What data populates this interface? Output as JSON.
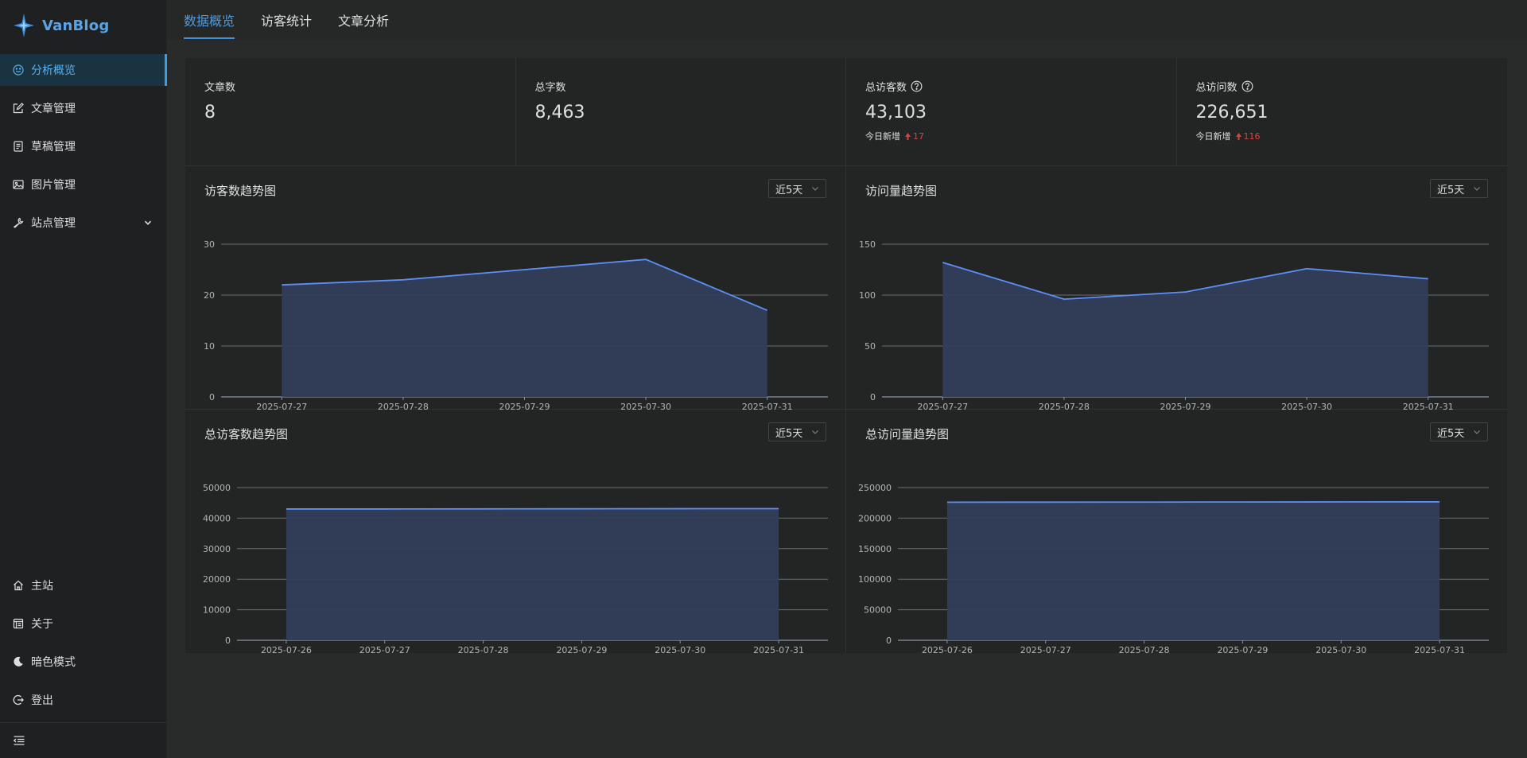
{
  "app": {
    "name": "VanBlog"
  },
  "sidebar": {
    "items": [
      {
        "label": "分析概览",
        "icon": "dashboard-icon",
        "active": true
      },
      {
        "label": "文章管理",
        "icon": "edit-icon"
      },
      {
        "label": "草稿管理",
        "icon": "draft-icon"
      },
      {
        "label": "图片管理",
        "icon": "image-icon"
      },
      {
        "label": "站点管理",
        "icon": "tool-icon",
        "expandable": true
      }
    ],
    "bottom_items": [
      {
        "label": "主站",
        "icon": "home-icon"
      },
      {
        "label": "关于",
        "icon": "about-icon"
      },
      {
        "label": "暗色模式",
        "icon": "moon-icon"
      },
      {
        "label": "登出",
        "icon": "logout-icon"
      }
    ]
  },
  "tabs": [
    {
      "label": "数据概览",
      "active": true
    },
    {
      "label": "访客统计"
    },
    {
      "label": "文章分析"
    }
  ],
  "stats": [
    {
      "title": "文章数",
      "value": "8"
    },
    {
      "title": "总字数",
      "value": "8,463"
    },
    {
      "title": "总访客数",
      "value": "43,103",
      "today_label": "今日新增",
      "today_value": "17",
      "help": true
    },
    {
      "title": "总访问数",
      "value": "226,651",
      "today_label": "今日新增",
      "today_value": "116",
      "help": true
    }
  ],
  "colors": {
    "accent": "#3f9be0",
    "line": "#5b8ff9",
    "area": "#333e5a",
    "up": "#d8423d"
  },
  "chart_data": [
    {
      "type": "area",
      "title": "访客数趋势图",
      "range": "近5天",
      "x": [
        "2025-07-27",
        "2025-07-28",
        "2025-07-29",
        "2025-07-30",
        "2025-07-31"
      ],
      "values": [
        22,
        23,
        25,
        27,
        17
      ],
      "ylim": [
        0,
        30
      ],
      "yticks": [
        "0",
        "10",
        "20",
        "30"
      ]
    },
    {
      "type": "area",
      "title": "访问量趋势图",
      "range": "近5天",
      "x": [
        "2025-07-27",
        "2025-07-28",
        "2025-07-29",
        "2025-07-30",
        "2025-07-31"
      ],
      "values": [
        132,
        96,
        103,
        126,
        116
      ],
      "ylim": [
        0,
        150
      ],
      "yticks": [
        "0",
        "50",
        "100",
        "150"
      ]
    },
    {
      "type": "area",
      "title": "总访客数趋势图",
      "range": "近5天",
      "x": [
        "2025-07-26",
        "2025-07-27",
        "2025-07-28",
        "2025-07-29",
        "2025-07-30",
        "2025-07-31"
      ],
      "values": [
        42980,
        42990,
        43020,
        43050,
        43086,
        43103
      ],
      "ylim": [
        0,
        50000
      ],
      "yticks": [
        "0",
        "10000",
        "20000",
        "30000",
        "40000",
        "50000"
      ]
    },
    {
      "type": "area",
      "title": "总访问量趋势图",
      "range": "近5天",
      "x": [
        "2025-07-26",
        "2025-07-27",
        "2025-07-28",
        "2025-07-29",
        "2025-07-30",
        "2025-07-31"
      ],
      "values": [
        226080,
        226180,
        226280,
        226400,
        226535,
        226651
      ],
      "ylim": [
        0,
        250000
      ],
      "yticks": [
        "0",
        "50000",
        "100000",
        "150000",
        "200000",
        "250000"
      ]
    }
  ]
}
